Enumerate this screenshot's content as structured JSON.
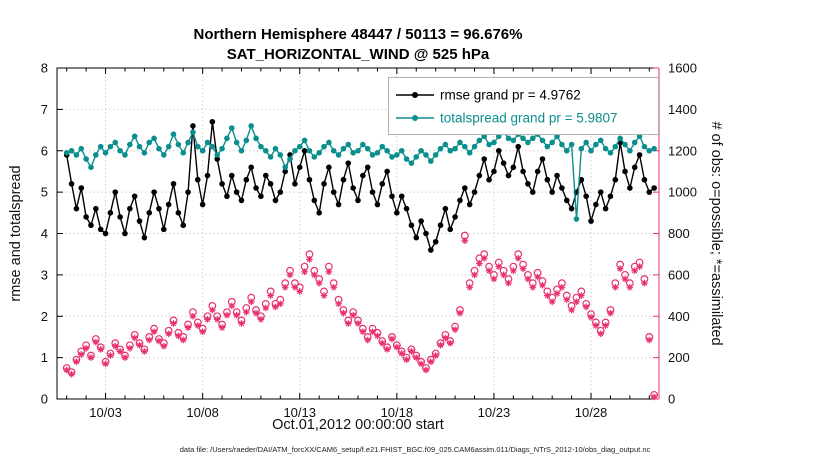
{
  "title": {
    "line1": "Northern Hemisphere 48447 / 50113 = 96.676%",
    "line2": "SAT_HORIZONTAL_WIND @ 525 hPa"
  },
  "caption": "data file: /Users/raeder/DAI/ATM_forcXX/CAM6_setup/f.e21.FHIST_BGC.f09_025.CAM6assim.011/Diags_NTrS_2012-10/obs_diag_output.nc",
  "legend": {
    "items": [
      {
        "label": "rmse grand pr = 4.9762",
        "color": "#000000"
      },
      {
        "label": "totalspread grand pr = 5.9807",
        "color": "#0b8e8e"
      }
    ]
  },
  "chart_data": {
    "type": "line",
    "title": "Northern Hemisphere 48447 / 50113 = 96.676% | SAT_HORIZONTAL_WIND @ 525 hPa",
    "xlabel": "Oct.01,2012 00:00:00 start",
    "x_note": "x values are days since Oct 1, 2012 00:00, sampled every 0.25 day",
    "x_start_day": 0,
    "x_step_days": 0.25,
    "xlim_days": [
      -0.5,
      30.5
    ],
    "x_tick_days": [
      2,
      7,
      12,
      17,
      22,
      27
    ],
    "x_tick_labels": [
      "10/03",
      "10/08",
      "10/13",
      "10/18",
      "10/23",
      "10/28"
    ],
    "grid": true,
    "legend_position": "top-right-inside",
    "left_axis": {
      "label": "rmse and totalspread",
      "ylim": [
        0,
        8
      ],
      "ticks": [
        0,
        1,
        2,
        3,
        4,
        5,
        6,
        7,
        8
      ],
      "color": "#000000"
    },
    "right_axis": {
      "label": "# of obs: o=possible; *=assimilated",
      "ylim": [
        0,
        1600
      ],
      "ticks": [
        0,
        200,
        400,
        600,
        800,
        1000,
        1200,
        1400,
        1600
      ],
      "color": "#e8316f"
    },
    "series": [
      {
        "name": "rmse",
        "axis": "left",
        "color": "#000000",
        "marker": "filled-circle",
        "line": true,
        "grand_mean": 4.9762,
        "values": [
          5.9,
          5.2,
          4.6,
          5.1,
          4.4,
          4.2,
          4.6,
          4.1,
          4.0,
          4.5,
          5.0,
          4.4,
          4.0,
          4.6,
          4.9,
          4.3,
          3.9,
          4.5,
          5.0,
          4.6,
          4.1,
          4.7,
          5.2,
          4.5,
          4.2,
          5.0,
          6.6,
          5.3,
          4.7,
          5.4,
          6.7,
          5.8,
          5.2,
          4.9,
          5.4,
          5.0,
          4.8,
          5.3,
          5.6,
          5.1,
          4.9,
          5.4,
          5.2,
          4.8,
          5.0,
          5.5,
          5.9,
          5.2,
          5.6,
          6.0,
          5.3,
          4.8,
          4.5,
          5.2,
          5.6,
          5.0,
          4.7,
          5.3,
          5.7,
          5.1,
          4.8,
          5.4,
          5.6,
          5.0,
          4.7,
          5.2,
          5.5,
          4.9,
          4.5,
          4.9,
          4.6,
          4.2,
          3.9,
          4.3,
          4.0,
          3.6,
          3.8,
          4.2,
          4.6,
          4.1,
          4.4,
          4.8,
          5.1,
          4.7,
          5.0,
          5.4,
          5.8,
          5.3,
          5.5,
          6.0,
          5.7,
          5.4,
          5.6,
          6.1,
          5.5,
          5.2,
          5.0,
          5.5,
          5.8,
          5.3,
          5.0,
          5.4,
          5.1,
          4.8,
          4.6,
          5.0,
          5.3,
          4.9,
          4.3,
          4.7,
          5.0,
          4.6,
          4.9,
          5.3,
          6.2,
          5.5,
          5.1,
          5.6,
          5.9,
          5.3,
          5.0,
          5.1
        ]
      },
      {
        "name": "totalspread",
        "axis": "left",
        "color": "#0b8e8e",
        "marker": "filled-circle",
        "line": true,
        "grand_mean": 5.9807,
        "values": [
          5.95,
          6.0,
          5.9,
          6.05,
          5.8,
          5.6,
          5.9,
          6.1,
          5.95,
          6.1,
          6.2,
          6.0,
          5.9,
          6.15,
          6.35,
          6.1,
          5.95,
          6.2,
          6.3,
          6.05,
          5.9,
          6.1,
          6.4,
          6.15,
          5.95,
          6.2,
          6.45,
          6.1,
          6.0,
          6.2,
          6.1,
          5.9,
          6.05,
          6.3,
          6.55,
          6.2,
          6.0,
          6.25,
          6.6,
          6.3,
          6.1,
          6.0,
          5.85,
          6.05,
          5.9,
          5.6,
          5.8,
          6.0,
          6.1,
          6.25,
          6.0,
          5.85,
          5.95,
          6.1,
          6.2,
          6.0,
          5.9,
          6.05,
          6.15,
          5.95,
          6.0,
          6.15,
          6.05,
          5.9,
          5.95,
          6.1,
          6.0,
          5.85,
          5.9,
          6.0,
          5.8,
          5.7,
          5.85,
          6.0,
          5.9,
          5.75,
          5.9,
          6.05,
          6.15,
          6.0,
          6.05,
          6.2,
          6.1,
          5.95,
          6.1,
          6.25,
          6.35,
          6.15,
          6.2,
          6.35,
          6.45,
          6.3,
          6.25,
          6.4,
          6.3,
          6.2,
          6.3,
          6.4,
          6.25,
          6.1,
          6.2,
          6.35,
          6.15,
          6.0,
          6.15,
          4.35,
          6.05,
          6.2,
          6.0,
          6.15,
          6.25,
          6.05,
          5.95,
          6.1,
          6.3,
          6.15,
          6.0,
          6.2,
          6.35,
          6.1,
          6.0,
          6.05
        ]
      },
      {
        "name": "observations possible",
        "axis": "right",
        "color": "#e8316f",
        "marker": "open-circle",
        "line": false,
        "values": [
          150,
          130,
          190,
          230,
          260,
          210,
          290,
          250,
          180,
          220,
          270,
          240,
          210,
          260,
          310,
          270,
          240,
          300,
          340,
          290,
          270,
          330,
          380,
          320,
          300,
          360,
          420,
          370,
          340,
          400,
          450,
          400,
          360,
          420,
          470,
          420,
          380,
          440,
          490,
          430,
          400,
          460,
          520,
          460,
          480,
          560,
          620,
          560,
          540,
          640,
          700,
          620,
          580,
          520,
          640,
          560,
          480,
          430,
          380,
          420,
          380,
          340,
          300,
          340,
          320,
          280,
          250,
          300,
          260,
          230,
          200,
          240,
          210,
          180,
          150,
          190,
          220,
          270,
          310,
          280,
          350,
          430,
          790,
          560,
          620,
          680,
          700,
          640,
          600,
          660,
          620,
          580,
          640,
          700,
          650,
          600,
          560,
          610,
          570,
          520,
          490,
          530,
          560,
          500,
          450,
          490,
          520,
          460,
          410,
          370,
          330,
          370,
          430,
          560,
          650,
          600,
          560,
          640,
          660,
          580,
          300,
          20
        ]
      },
      {
        "name": "observations assimilated",
        "axis": "right",
        "color": "#e8316f",
        "marker": "asterisk",
        "line": false,
        "values": [
          140,
          120,
          180,
          215,
          245,
          200,
          275,
          240,
          170,
          210,
          255,
          230,
          200,
          245,
          295,
          260,
          230,
          285,
          325,
          280,
          255,
          315,
          365,
          305,
          285,
          345,
          400,
          355,
          325,
          385,
          430,
          385,
          345,
          405,
          450,
          405,
          365,
          420,
          470,
          415,
          385,
          440,
          500,
          445,
          460,
          540,
          600,
          540,
          520,
          615,
          675,
          600,
          560,
          500,
          615,
          540,
          460,
          415,
          365,
          405,
          365,
          325,
          285,
          325,
          305,
          270,
          240,
          290,
          250,
          220,
          190,
          230,
          200,
          170,
          140,
          180,
          210,
          260,
          295,
          270,
          335,
          415,
          765,
          540,
          600,
          655,
          680,
          620,
          580,
          640,
          600,
          560,
          620,
          680,
          630,
          580,
          540,
          590,
          550,
          500,
          470,
          510,
          540,
          480,
          430,
          470,
          500,
          445,
          395,
          355,
          315,
          355,
          415,
          540,
          630,
          580,
          540,
          620,
          640,
          560,
          285,
          10
        ]
      }
    ]
  }
}
